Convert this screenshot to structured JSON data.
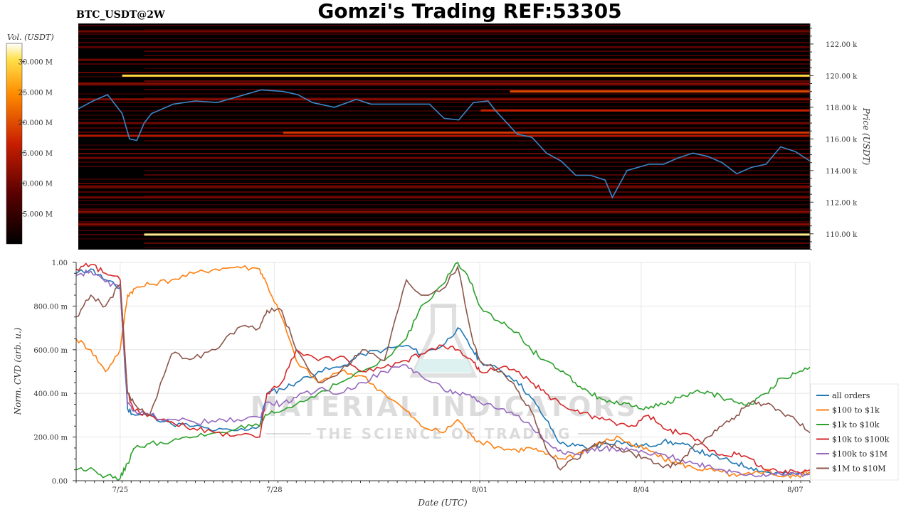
{
  "header": {
    "symbol": "BTC_USDT@2W",
    "title": "Gomzi's Trading REF:53305"
  },
  "watermark": {
    "line1": "MATERIAL INDICATORS",
    "line2": "THE SCIENCE OF TRADING",
    "icon": "flask-icon"
  },
  "colors": {
    "price_line": "#3a86c8",
    "heatmap_bg": "#000000",
    "grid": "#e6e6e6"
  },
  "chart_data": [
    {
      "type": "heatmap",
      "colorbar": {
        "label": "Vol. (USDT)",
        "ticks": [
          "30.000 M",
          "25.000 M",
          "20.000 M",
          "15.000 M",
          "10.000 M",
          "5.000 M"
        ],
        "tick_values": [
          30,
          25,
          20,
          15,
          10,
          5
        ],
        "range": [
          0,
          33
        ]
      },
      "ylabel": "Price (USDT)",
      "ylim": [
        109000,
        123300
      ],
      "y_ticks": [
        110000,
        112000,
        114000,
        116000,
        118000,
        120000,
        122000
      ],
      "y_tick_labels": [
        "110.00 k",
        "112.00 k",
        "114.00 k",
        "116.00 k",
        "118.00 k",
        "120.00 k",
        "122.00 k"
      ],
      "liquidity_levels": [
        {
          "price": 109950,
          "intensity": 0.95,
          "start": 0.09
        },
        {
          "price": 120000,
          "intensity": 0.9,
          "start": 0.06
        },
        {
          "price": 119000,
          "intensity": 0.6,
          "start": 0.59
        },
        {
          "price": 116400,
          "intensity": 0.55,
          "start": 0.28
        },
        {
          "price": 117800,
          "intensity": 0.5,
          "start": 0.55
        },
        {
          "price": 116200,
          "intensity": 0.45,
          "start": 0.0
        },
        {
          "price": 122800,
          "intensity": 0.3,
          "start": 0.0
        },
        {
          "price": 121000,
          "intensity": 0.3,
          "start": 0.0
        },
        {
          "price": 111400,
          "intensity": 0.35,
          "start": 0.0
        },
        {
          "price": 110600,
          "intensity": 0.35,
          "start": 0.0
        },
        {
          "price": 113000,
          "intensity": 0.3,
          "start": 0.0
        },
        {
          "price": 114800,
          "intensity": 0.3,
          "start": 0.0
        },
        {
          "price": 117000,
          "intensity": 0.3,
          "start": 0.0
        },
        {
          "price": 118500,
          "intensity": 0.35,
          "start": 0.0
        },
        {
          "price": 119500,
          "intensity": 0.35,
          "start": 0.0
        },
        {
          "price": 121800,
          "intensity": 0.25,
          "start": 0.0
        },
        {
          "price": 112300,
          "intensity": 0.3,
          "start": 0.0
        }
      ],
      "series": [
        {
          "x_frac": [
            0.0,
            0.02,
            0.04,
            0.06,
            0.07,
            0.08,
            0.09,
            0.1,
            0.13,
            0.16,
            0.19,
            0.22,
            0.25,
            0.28,
            0.3,
            0.32,
            0.35,
            0.38,
            0.4,
            0.42,
            0.45,
            0.48,
            0.5,
            0.52,
            0.54,
            0.56,
            0.57,
            0.6,
            0.62,
            0.64,
            0.66,
            0.68,
            0.7,
            0.72,
            0.73,
            0.75,
            0.78,
            0.8,
            0.82,
            0.84,
            0.86,
            0.88,
            0.9,
            0.92,
            0.94,
            0.96,
            0.98,
            1.0
          ],
          "price": [
            117900,
            118400,
            118800,
            117600,
            116000,
            115900,
            117000,
            117600,
            118200,
            118400,
            118300,
            118700,
            119100,
            119000,
            118800,
            118300,
            118000,
            118500,
            118200,
            118200,
            118200,
            118200,
            117300,
            117200,
            118300,
            118400,
            117800,
            116300,
            116100,
            115100,
            114600,
            113700,
            113700,
            113400,
            112300,
            114000,
            114400,
            114400,
            114800,
            115100,
            114900,
            114500,
            113800,
            114200,
            114400,
            115500,
            115200,
            114600
          ]
        }
      ]
    },
    {
      "type": "line",
      "xlabel": "Date (UTC)",
      "ylabel": "Norm. CVD (arb. u.)",
      "ylim": [
        0,
        1
      ],
      "y_ticks": [
        0,
        0.2,
        0.4,
        0.6,
        0.8,
        1.0
      ],
      "y_tick_labels": [
        "0.00",
        "200.00 m",
        "400.00 m",
        "600.00 m",
        "800.00 m",
        "1.00"
      ],
      "x_ticks": [
        "7/25",
        "7/28",
        "8/01",
        "8/04",
        "8/07"
      ],
      "x_tick_pos": [
        0.06,
        0.27,
        0.55,
        0.77,
        0.98
      ],
      "x": [
        0.0,
        0.02,
        0.04,
        0.06,
        0.07,
        0.08,
        0.1,
        0.13,
        0.16,
        0.19,
        0.22,
        0.25,
        0.26,
        0.28,
        0.3,
        0.33,
        0.36,
        0.39,
        0.42,
        0.45,
        0.47,
        0.5,
        0.52,
        0.54,
        0.55,
        0.58,
        0.6,
        0.62,
        0.64,
        0.66,
        0.68,
        0.7,
        0.72,
        0.74,
        0.76,
        0.78,
        0.8,
        0.82,
        0.84,
        0.86,
        0.88,
        0.9,
        0.92,
        0.94,
        0.96,
        0.98,
        1.0
      ],
      "series": [
        {
          "name": "all orders",
          "color": "#1f77b4",
          "values": [
            0.95,
            0.97,
            0.92,
            0.88,
            0.33,
            0.3,
            0.3,
            0.26,
            0.25,
            0.23,
            0.23,
            0.25,
            0.4,
            0.42,
            0.45,
            0.5,
            0.52,
            0.58,
            0.6,
            0.62,
            0.58,
            0.62,
            0.7,
            0.6,
            0.55,
            0.5,
            0.46,
            0.38,
            0.28,
            0.17,
            0.16,
            0.15,
            0.17,
            0.18,
            0.16,
            0.16,
            0.18,
            0.17,
            0.15,
            0.12,
            0.1,
            0.08,
            0.06,
            0.04,
            0.03,
            0.03,
            0.04
          ]
        },
        {
          "name": "$100 to $1k",
          "color": "#ff7f0e",
          "values": [
            0.65,
            0.6,
            0.5,
            0.6,
            0.85,
            0.88,
            0.9,
            0.92,
            0.95,
            0.97,
            0.98,
            0.97,
            0.9,
            0.75,
            0.55,
            0.45,
            0.5,
            0.48,
            0.4,
            0.32,
            0.25,
            0.22,
            0.28,
            0.2,
            0.18,
            0.15,
            0.14,
            0.15,
            0.12,
            0.1,
            0.12,
            0.15,
            0.18,
            0.2,
            0.16,
            0.14,
            0.1,
            0.08,
            0.06,
            0.05,
            0.04,
            0.02,
            0.03,
            0.05,
            0.02,
            0.02,
            0.04
          ]
        },
        {
          "name": "$1k to $10k",
          "color": "#2ca02c",
          "values": [
            0.05,
            0.06,
            0.02,
            0.01,
            0.08,
            0.15,
            0.17,
            0.18,
            0.2,
            0.22,
            0.24,
            0.25,
            0.3,
            0.32,
            0.35,
            0.4,
            0.45,
            0.5,
            0.55,
            0.65,
            0.8,
            0.9,
            1.0,
            0.9,
            0.8,
            0.72,
            0.68,
            0.6,
            0.55,
            0.5,
            0.45,
            0.4,
            0.37,
            0.35,
            0.34,
            0.33,
            0.35,
            0.38,
            0.4,
            0.41,
            0.38,
            0.36,
            0.35,
            0.4,
            0.47,
            0.49,
            0.52
          ]
        },
        {
          "name": "$10k to $100k",
          "color": "#d62728",
          "values": [
            0.97,
            0.99,
            0.95,
            0.92,
            0.4,
            0.32,
            0.3,
            0.27,
            0.24,
            0.22,
            0.21,
            0.2,
            0.4,
            0.45,
            0.6,
            0.55,
            0.57,
            0.5,
            0.52,
            0.55,
            0.58,
            0.62,
            0.6,
            0.55,
            0.5,
            0.52,
            0.5,
            0.45,
            0.4,
            0.35,
            0.32,
            0.3,
            0.28,
            0.26,
            0.25,
            0.3,
            0.24,
            0.22,
            0.2,
            0.15,
            0.12,
            0.12,
            0.1,
            0.05,
            0.04,
            0.04,
            0.05
          ]
        },
        {
          "name": "$100k to $1M",
          "color": "#9467bd",
          "values": [
            0.94,
            0.96,
            0.91,
            0.88,
            0.35,
            0.32,
            0.3,
            0.28,
            0.27,
            0.27,
            0.28,
            0.29,
            0.36,
            0.35,
            0.38,
            0.42,
            0.4,
            0.45,
            0.5,
            0.53,
            0.48,
            0.42,
            0.4,
            0.38,
            0.36,
            0.33,
            0.3,
            0.25,
            0.18,
            0.14,
            0.12,
            0.14,
            0.15,
            0.14,
            0.14,
            0.12,
            0.12,
            0.1,
            0.08,
            0.07,
            0.05,
            0.04,
            0.03,
            0.02,
            0.03,
            0.03,
            0.03
          ]
        },
        {
          "name": "$1M to $10M",
          "color": "#8c564b",
          "values": [
            0.75,
            0.85,
            0.8,
            0.9,
            0.4,
            0.35,
            0.3,
            0.58,
            0.56,
            0.6,
            0.7,
            0.7,
            0.78,
            0.78,
            0.6,
            0.45,
            0.5,
            0.6,
            0.55,
            0.92,
            0.85,
            0.88,
            0.98,
            0.65,
            0.55,
            0.5,
            0.42,
            0.32,
            0.15,
            0.05,
            0.1,
            0.15,
            0.18,
            0.15,
            0.12,
            0.1,
            0.06,
            0.08,
            0.15,
            0.2,
            0.25,
            0.3,
            0.36,
            0.35,
            0.32,
            0.28,
            0.22
          ]
        }
      ],
      "legend": "right"
    }
  ]
}
